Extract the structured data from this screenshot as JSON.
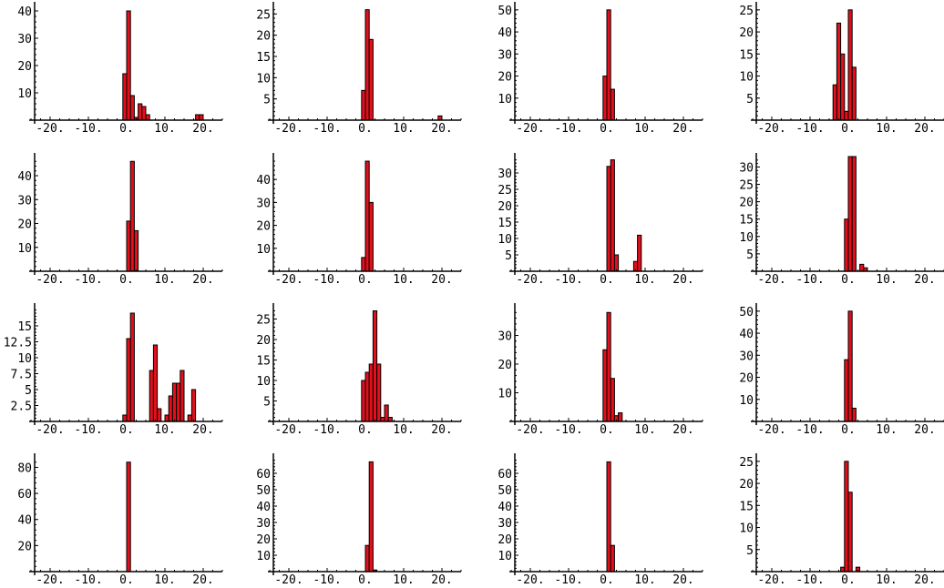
{
  "colors": {
    "bar_fill": "#e0101c",
    "bar_stroke": "#000000",
    "axis": "#000000"
  },
  "chart_data": [
    {
      "type": "bar",
      "title": "",
      "xlabel": "",
      "ylabel": "",
      "xlim": [
        -25,
        25
      ],
      "ylim": [
        0,
        42
      ],
      "xticks": [
        -20,
        -10,
        0,
        10,
        20
      ],
      "xticklabels": [
        "-20.",
        "-10.",
        "0.",
        "10.",
        "20."
      ],
      "yticks": [
        10,
        20,
        30,
        40
      ],
      "yticklabels": [
        "10",
        "20",
        "30",
        "40"
      ],
      "bin_width": 1,
      "bars": [
        {
          "x": -0.5,
          "y": 17
        },
        {
          "x": 0.5,
          "y": 40
        },
        {
          "x": 1.5,
          "y": 9
        },
        {
          "x": 2.5,
          "y": 1
        },
        {
          "x": 3.5,
          "y": 6
        },
        {
          "x": 4.5,
          "y": 5
        },
        {
          "x": 5.5,
          "y": 2
        },
        {
          "x": 18.5,
          "y": 2
        },
        {
          "x": 19.5,
          "y": 2
        }
      ]
    },
    {
      "type": "bar",
      "title": "",
      "xlabel": "",
      "ylabel": "",
      "xlim": [
        -25,
        25
      ],
      "ylim": [
        0,
        27
      ],
      "xticks": [
        -20,
        -10,
        0,
        10,
        20
      ],
      "xticklabels": [
        "-20.",
        "-10.",
        "0.",
        "10.",
        "20."
      ],
      "yticks": [
        5,
        10,
        15,
        20,
        25
      ],
      "yticklabels": [
        "5",
        "10",
        "15",
        "20",
        "25"
      ],
      "bin_width": 1,
      "bars": [
        {
          "x": -0.5,
          "y": 7
        },
        {
          "x": 0.5,
          "y": 26
        },
        {
          "x": 1.5,
          "y": 19
        },
        {
          "x": 19.5,
          "y": 1
        }
      ]
    },
    {
      "type": "bar",
      "title": "",
      "xlabel": "",
      "ylabel": "",
      "xlim": [
        -25,
        25
      ],
      "ylim": [
        0,
        52
      ],
      "xticks": [
        -20,
        -10,
        0,
        10,
        20
      ],
      "xticklabels": [
        "-20.",
        "-10.",
        "0.",
        "10.",
        "20."
      ],
      "yticks": [
        10,
        20,
        30,
        40,
        50
      ],
      "yticklabels": [
        "10",
        "20",
        "30",
        "40",
        "50"
      ],
      "bin_width": 1,
      "bars": [
        {
          "x": -0.5,
          "y": 20
        },
        {
          "x": 0.5,
          "y": 50
        },
        {
          "x": 1.5,
          "y": 14
        }
      ]
    },
    {
      "type": "bar",
      "title": "",
      "xlabel": "",
      "ylabel": "",
      "xlim": [
        -25,
        25
      ],
      "ylim": [
        0,
        26
      ],
      "xticks": [
        -20,
        -10,
        0,
        10,
        20
      ],
      "xticklabels": [
        "-20.",
        "-10.",
        "0.",
        "10.",
        "20."
      ],
      "yticks": [
        5,
        10,
        15,
        20,
        25
      ],
      "yticklabels": [
        "5",
        "10",
        "15",
        "20",
        "25"
      ],
      "bin_width": 1,
      "bars": [
        {
          "x": -3.5,
          "y": 8
        },
        {
          "x": -2.5,
          "y": 22
        },
        {
          "x": -1.5,
          "y": 15
        },
        {
          "x": -0.5,
          "y": 2
        },
        {
          "x": 0.5,
          "y": 25
        },
        {
          "x": 1.5,
          "y": 12
        }
      ]
    },
    {
      "type": "bar",
      "title": "",
      "xlabel": "",
      "ylabel": "",
      "xlim": [
        -25,
        25
      ],
      "ylim": [
        0,
        48
      ],
      "xticks": [
        -20,
        -10,
        0,
        10,
        20
      ],
      "xticklabels": [
        "-20.",
        "-10.",
        "0.",
        "10.",
        "20."
      ],
      "yticks": [
        10,
        20,
        30,
        40
      ],
      "yticklabels": [
        "10",
        "20",
        "30",
        "40"
      ],
      "bin_width": 1,
      "bars": [
        {
          "x": 0.5,
          "y": 21
        },
        {
          "x": 1.5,
          "y": 46
        },
        {
          "x": 2.5,
          "y": 17
        }
      ]
    },
    {
      "type": "bar",
      "title": "",
      "xlabel": "",
      "ylabel": "",
      "xlim": [
        -25,
        25
      ],
      "ylim": [
        0,
        50
      ],
      "xticks": [
        -20,
        -10,
        0,
        10,
        20
      ],
      "xticklabels": [
        "-20.",
        "-10.",
        "0.",
        "10.",
        "20."
      ],
      "yticks": [
        10,
        20,
        30,
        40
      ],
      "yticklabels": [
        "10",
        "20",
        "30",
        "40"
      ],
      "bin_width": 1,
      "bars": [
        {
          "x": -0.5,
          "y": 6
        },
        {
          "x": 0.5,
          "y": 48
        },
        {
          "x": 1.5,
          "y": 30
        }
      ]
    },
    {
      "type": "bar",
      "title": "",
      "xlabel": "",
      "ylabel": "",
      "xlim": [
        -25,
        25
      ],
      "ylim": [
        0,
        35
      ],
      "xticks": [
        -20,
        -10,
        0,
        10,
        20
      ],
      "xticklabels": [
        "-20.",
        "-10.",
        "0.",
        "10.",
        "20."
      ],
      "yticks": [
        5,
        10,
        15,
        20,
        25,
        30
      ],
      "yticklabels": [
        "5",
        "10",
        "15",
        "20",
        "25",
        "30"
      ],
      "bin_width": 1,
      "bars": [
        {
          "x": 0.5,
          "y": 32
        },
        {
          "x": 1.5,
          "y": 34
        },
        {
          "x": 2.5,
          "y": 5
        },
        {
          "x": 7.5,
          "y": 3
        },
        {
          "x": 8.5,
          "y": 11
        }
      ]
    },
    {
      "type": "bar",
      "title": "",
      "xlabel": "",
      "ylabel": "",
      "xlim": [
        -25,
        25
      ],
      "ylim": [
        0,
        33
      ],
      "xticks": [
        -20,
        -10,
        0,
        10,
        20
      ],
      "xticklabels": [
        "-20.",
        "-10.",
        "0.",
        "10.",
        "20."
      ],
      "yticks": [
        5,
        10,
        15,
        20,
        25,
        30
      ],
      "yticklabels": [
        "5",
        "10",
        "15",
        "20",
        "25",
        "30"
      ],
      "bin_width": 1,
      "bars": [
        {
          "x": -0.5,
          "y": 15
        },
        {
          "x": 0.5,
          "y": 33
        },
        {
          "x": 1.5,
          "y": 33
        },
        {
          "x": 3.5,
          "y": 2
        },
        {
          "x": 4.5,
          "y": 1
        }
      ]
    },
    {
      "type": "bar",
      "title": "",
      "xlabel": "",
      "ylabel": "",
      "xlim": [
        -25,
        25
      ],
      "ylim": [
        0,
        18
      ],
      "xticks": [
        -20,
        -10,
        0,
        10,
        20
      ],
      "xticklabels": [
        "-20.",
        "-10.",
        "0.",
        "10.",
        "20."
      ],
      "yticks": [
        2.5,
        5,
        7.5,
        10,
        12.5,
        15
      ],
      "yticklabels": [
        "2.5",
        "5",
        "7.5",
        "10",
        "12.5",
        "15"
      ],
      "bin_width": 1,
      "bars": [
        {
          "x": -0.5,
          "y": 1
        },
        {
          "x": 0.5,
          "y": 13
        },
        {
          "x": 1.5,
          "y": 17
        },
        {
          "x": 6.5,
          "y": 8
        },
        {
          "x": 7.5,
          "y": 12
        },
        {
          "x": 8.5,
          "y": 2
        },
        {
          "x": 10.5,
          "y": 1
        },
        {
          "x": 11.5,
          "y": 4
        },
        {
          "x": 12.5,
          "y": 6
        },
        {
          "x": 13.5,
          "y": 6
        },
        {
          "x": 14.5,
          "y": 8
        },
        {
          "x": 16.5,
          "y": 1
        },
        {
          "x": 17.5,
          "y": 5
        }
      ]
    },
    {
      "type": "bar",
      "title": "",
      "xlabel": "",
      "ylabel": "",
      "xlim": [
        -25,
        25
      ],
      "ylim": [
        0,
        28
      ],
      "xticks": [
        -20,
        -10,
        0,
        10,
        20
      ],
      "xticklabels": [
        "-20.",
        "-10.",
        "0.",
        "10.",
        "20."
      ],
      "yticks": [
        5,
        10,
        15,
        20,
        25
      ],
      "yticklabels": [
        "5",
        "10",
        "15",
        "20",
        "25"
      ],
      "bin_width": 1,
      "bars": [
        {
          "x": -0.5,
          "y": 10
        },
        {
          "x": 0.5,
          "y": 12
        },
        {
          "x": 1.5,
          "y": 14
        },
        {
          "x": 2.5,
          "y": 27
        },
        {
          "x": 3.5,
          "y": 14
        },
        {
          "x": 4.5,
          "y": 1
        },
        {
          "x": 5.5,
          "y": 4
        },
        {
          "x": 6.5,
          "y": 1
        }
      ]
    },
    {
      "type": "bar",
      "title": "",
      "xlabel": "",
      "ylabel": "",
      "xlim": [
        -25,
        25
      ],
      "ylim": [
        0,
        40
      ],
      "xticks": [
        -20,
        -10,
        0,
        10,
        20
      ],
      "xticklabels": [
        "-20.",
        "-10.",
        "0.",
        "10.",
        "20."
      ],
      "yticks": [
        10,
        20,
        30
      ],
      "yticklabels": [
        "10",
        "20",
        "30"
      ],
      "bin_width": 1,
      "bars": [
        {
          "x": -0.5,
          "y": 25
        },
        {
          "x": 0.5,
          "y": 38
        },
        {
          "x": 1.5,
          "y": 15
        },
        {
          "x": 2.5,
          "y": 2
        },
        {
          "x": 3.5,
          "y": 3
        }
      ]
    },
    {
      "type": "bar",
      "title": "",
      "xlabel": "",
      "ylabel": "",
      "xlim": [
        -25,
        25
      ],
      "ylim": [
        0,
        52
      ],
      "xticks": [
        -20,
        -10,
        0,
        10,
        20
      ],
      "xticklabels": [
        "-20.",
        "-10.",
        "0.",
        "10.",
        "20."
      ],
      "yticks": [
        10,
        20,
        30,
        40,
        50
      ],
      "yticklabels": [
        "10",
        "20",
        "30",
        "40",
        "50"
      ],
      "bin_width": 1,
      "bars": [
        {
          "x": -0.5,
          "y": 28
        },
        {
          "x": 0.5,
          "y": 50
        },
        {
          "x": 1.5,
          "y": 6
        }
      ]
    },
    {
      "type": "bar",
      "title": "",
      "xlabel": "",
      "ylabel": "",
      "xlim": [
        -25,
        25
      ],
      "ylim": [
        0,
        88
      ],
      "xticks": [
        -20,
        -10,
        0,
        10,
        20
      ],
      "xticklabels": [
        "-20.",
        "-10.",
        "0.",
        "10.",
        "20."
      ],
      "yticks": [
        20,
        40,
        60,
        80
      ],
      "yticklabels": [
        "20",
        "40",
        "60",
        "80"
      ],
      "bin_width": 1,
      "bars": [
        {
          "x": 0.5,
          "y": 84
        }
      ]
    },
    {
      "type": "bar",
      "title": "",
      "xlabel": "",
      "ylabel": "",
      "xlim": [
        -25,
        25
      ],
      "ylim": [
        0,
        70
      ],
      "xticks": [
        -20,
        -10,
        0,
        10,
        20
      ],
      "xticklabels": [
        "-20.",
        "-10.",
        "0.",
        "10.",
        "20."
      ],
      "yticks": [
        10,
        20,
        30,
        40,
        50,
        60
      ],
      "yticklabels": [
        "10",
        "20",
        "30",
        "40",
        "50",
        "60"
      ],
      "bin_width": 1,
      "bars": [
        {
          "x": 0.5,
          "y": 16
        },
        {
          "x": 1.5,
          "y": 67
        },
        {
          "x": 2.5,
          "y": 1
        }
      ]
    },
    {
      "type": "bar",
      "title": "",
      "xlabel": "",
      "ylabel": "",
      "xlim": [
        -25,
        25
      ],
      "ylim": [
        0,
        70
      ],
      "xticks": [
        -20,
        -10,
        0,
        10,
        20
      ],
      "xticklabels": [
        "-20.",
        "-10.",
        "0.",
        "10.",
        "20."
      ],
      "yticks": [
        10,
        20,
        30,
        40,
        50,
        60
      ],
      "yticklabels": [
        "10",
        "20",
        "30",
        "40",
        "50",
        "60"
      ],
      "bin_width": 1,
      "bars": [
        {
          "x": 0.5,
          "y": 67
        },
        {
          "x": 1.5,
          "y": 16
        }
      ]
    },
    {
      "type": "bar",
      "title": "",
      "xlabel": "",
      "ylabel": "",
      "xlim": [
        -25,
        25
      ],
      "ylim": [
        0,
        26
      ],
      "xticks": [
        -20,
        -10,
        0,
        10,
        20
      ],
      "xticklabels": [
        "-20.",
        "-10.",
        "0.",
        "10.",
        "20."
      ],
      "yticks": [
        5,
        10,
        15,
        20,
        25
      ],
      "yticklabels": [
        "5",
        "10",
        "15",
        "20",
        "25"
      ],
      "bin_width": 1,
      "bars": [
        {
          "x": -1.5,
          "y": 1
        },
        {
          "x": -0.5,
          "y": 25
        },
        {
          "x": 0.5,
          "y": 18
        },
        {
          "x": 2.5,
          "y": 1
        }
      ]
    }
  ]
}
